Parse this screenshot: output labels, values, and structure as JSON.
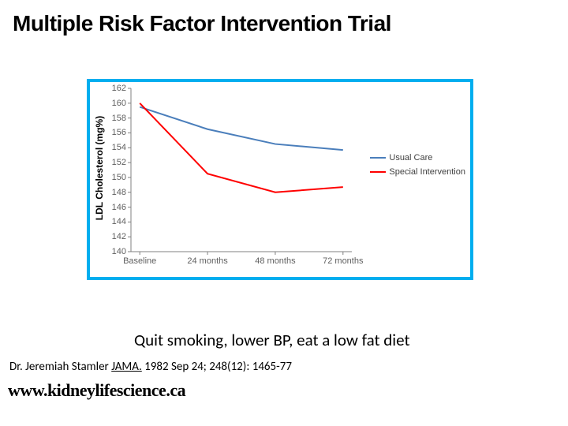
{
  "title": "Multiple Risk Factor Intervention Trial",
  "annotation": "Quit smoking, lower BP, eat a low fat diet",
  "citation_author": "Dr. Jeremiah Stamler ",
  "citation_journal": "JAMA.",
  "citation_rest": " 1982 Sep 24; 248(12): 1465-77",
  "footer_url": "www.kidneylifescience.ca",
  "chart": {
    "type": "line",
    "border_color": "#00aeef",
    "background_color": "#ffffff",
    "y_label": "LDL Cholesterol (mg%)",
    "y_label_fontsize": 12,
    "ylim": [
      140,
      162
    ],
    "ytick_step": 2,
    "yticks": [
      140,
      142,
      144,
      146,
      148,
      150,
      152,
      154,
      156,
      158,
      160,
      162
    ],
    "x_categories": [
      "Baseline",
      "24 months",
      "48 months",
      "72 months"
    ],
    "axis_color": "#808080",
    "tick_fontsize": 11,
    "tick_color": "#606060",
    "grid": false,
    "series": [
      {
        "name": "Usual Care",
        "color": "#4a7ebb",
        "line_width": 2,
        "values": [
          159.5,
          156.5,
          154.5,
          153.7
        ]
      },
      {
        "name": "Special Intervention",
        "color": "#ff0000",
        "line_width": 2,
        "values": [
          160.0,
          150.5,
          148.0,
          148.7
        ]
      }
    ],
    "legend": {
      "position": "right",
      "fontsize": 11,
      "text_color": "#404040"
    }
  }
}
